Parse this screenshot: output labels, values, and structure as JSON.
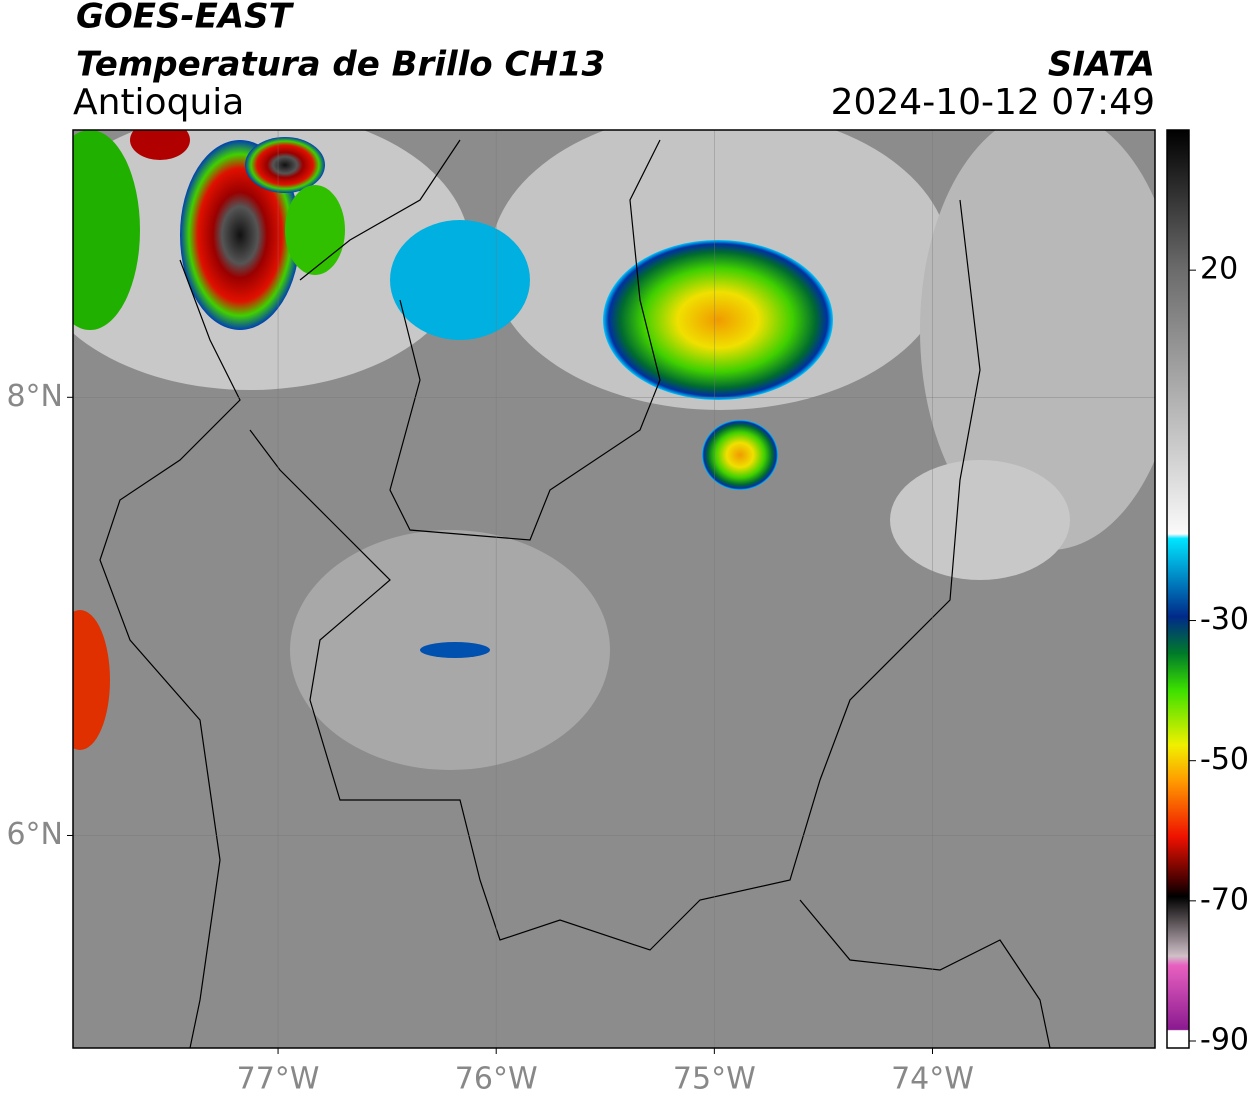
{
  "header": {
    "title": "GOES-EAST",
    "subtitle": "Temperatura de Brillo CH13",
    "region": "Antioquia",
    "source": "SIATA",
    "datetime": "2024-10-12 07:49"
  },
  "map": {
    "xlim": [
      -77.94,
      -72.98
    ],
    "ylim": [
      5.03,
      9.22
    ],
    "xticks": [
      {
        "value": -77,
        "label": "77°W"
      },
      {
        "value": -76,
        "label": "76°W"
      },
      {
        "value": -75,
        "label": "75°W"
      },
      {
        "value": -74,
        "label": "74°W"
      }
    ],
    "yticks": [
      {
        "value": 8,
        "label": "8°N"
      },
      {
        "value": 6,
        "label": "6°N"
      }
    ]
  },
  "colorbar": {
    "lim": [
      -91,
      40
    ],
    "ticks": [
      20,
      -30,
      -50,
      -70,
      -90
    ]
  }
}
